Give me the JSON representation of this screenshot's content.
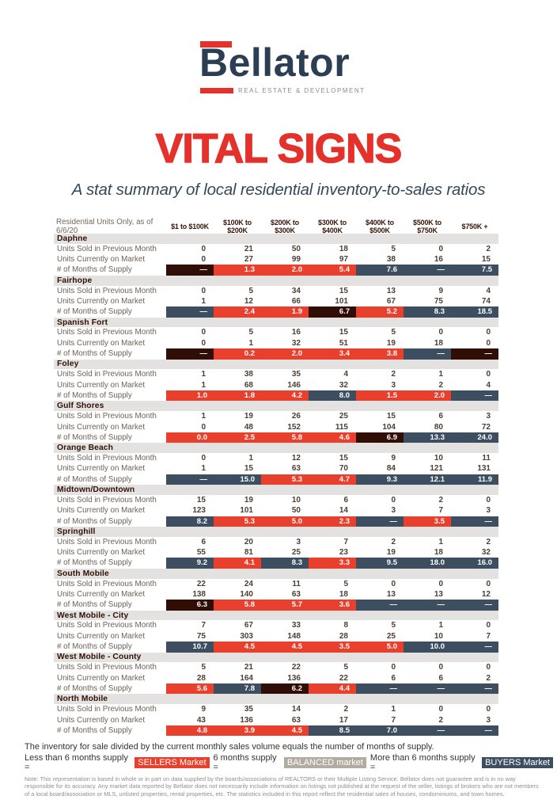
{
  "brand": {
    "name": "Bellator",
    "tagline": "REAL ESTATE & DEVELOPMENT"
  },
  "title": "VITAL SIGNS",
  "subtitle": "A stat summary of local residential inventory-to-sales ratios",
  "colors": {
    "brand_red": "#E5312B",
    "logo_navy": "#2C3E53",
    "subtitle_navy": "#34495C",
    "sellers": "#E8402D",
    "buyers": "#3D4E61",
    "na": "#300D05",
    "balanced": "#B2ABA2"
  },
  "table": {
    "meta_label": "Residential Units Only, as of 6/6/20",
    "columns": [
      "$1 to $100K",
      "$100K to $200K",
      "$200K to $300K",
      "$300K to $400K",
      "$400K to $500K",
      "$500K to $750K",
      "$750K +"
    ],
    "row_labels": {
      "sold": "Units Sold in Previous Month",
      "market": "Units Currently on Market",
      "supply": "# of Months of Supply"
    },
    "sections": [
      {
        "name": "Daphne",
        "sold": [
          "0",
          "21",
          "50",
          "18",
          "5",
          "0",
          "2"
        ],
        "market": [
          "0",
          "27",
          "99",
          "97",
          "38",
          "16",
          "15"
        ],
        "supply": [
          {
            "value": "—",
            "market": "na"
          },
          {
            "value": "1.3",
            "market": "sellers"
          },
          {
            "value": "2.0",
            "market": "sellers"
          },
          {
            "value": "5.4",
            "market": "sellers"
          },
          {
            "value": "7.6",
            "market": "buyers"
          },
          {
            "value": "—",
            "market": "buyers"
          },
          {
            "value": "7.5",
            "market": "buyers"
          }
        ]
      },
      {
        "name": "Fairhope",
        "sold": [
          "0",
          "5",
          "34",
          "15",
          "13",
          "9",
          "4"
        ],
        "market": [
          "1",
          "12",
          "66",
          "101",
          "67",
          "75",
          "74"
        ],
        "supply": [
          {
            "value": "—",
            "market": "buyers"
          },
          {
            "value": "2.4",
            "market": "sellers"
          },
          {
            "value": "1.9",
            "market": "sellers"
          },
          {
            "value": "6.7",
            "market": "na"
          },
          {
            "value": "5.2",
            "market": "sellers"
          },
          {
            "value": "8.3",
            "market": "buyers"
          },
          {
            "value": "18.5",
            "market": "buyers"
          }
        ]
      },
      {
        "name": "Spanish Fort",
        "sold": [
          "0",
          "5",
          "16",
          "15",
          "5",
          "0",
          "0"
        ],
        "market": [
          "0",
          "1",
          "32",
          "51",
          "19",
          "18",
          "0"
        ],
        "supply": [
          {
            "value": "—",
            "market": "na"
          },
          {
            "value": "0.2",
            "market": "sellers"
          },
          {
            "value": "2.0",
            "market": "sellers"
          },
          {
            "value": "3.4",
            "market": "sellers"
          },
          {
            "value": "3.8",
            "market": "sellers"
          },
          {
            "value": "—",
            "market": "buyers"
          },
          {
            "value": "—",
            "market": "na"
          }
        ]
      },
      {
        "name": "Foley",
        "sold": [
          "1",
          "38",
          "35",
          "4",
          "2",
          "1",
          "0"
        ],
        "market": [
          "1",
          "68",
          "146",
          "32",
          "3",
          "2",
          "4"
        ],
        "supply": [
          {
            "value": "1.0",
            "market": "sellers"
          },
          {
            "value": "1.8",
            "market": "sellers"
          },
          {
            "value": "4.2",
            "market": "sellers"
          },
          {
            "value": "8.0",
            "market": "buyers"
          },
          {
            "value": "1.5",
            "market": "sellers"
          },
          {
            "value": "2.0",
            "market": "sellers"
          },
          {
            "value": "—",
            "market": "buyers"
          }
        ]
      },
      {
        "name": "Gulf Shores",
        "sold": [
          "1",
          "19",
          "26",
          "25",
          "15",
          "6",
          "3"
        ],
        "market": [
          "0",
          "48",
          "152",
          "115",
          "104",
          "80",
          "72"
        ],
        "supply": [
          {
            "value": "0.0",
            "market": "sellers"
          },
          {
            "value": "2.5",
            "market": "sellers"
          },
          {
            "value": "5.8",
            "market": "sellers"
          },
          {
            "value": "4.6",
            "market": "sellers"
          },
          {
            "value": "6.9",
            "market": "na"
          },
          {
            "value": "13.3",
            "market": "buyers"
          },
          {
            "value": "24.0",
            "market": "buyers"
          }
        ]
      },
      {
        "name": "Orange Beach",
        "sold": [
          "0",
          "1",
          "12",
          "15",
          "9",
          "10",
          "11"
        ],
        "market": [
          "1",
          "15",
          "63",
          "70",
          "84",
          "121",
          "131"
        ],
        "supply": [
          {
            "value": "—",
            "market": "buyers"
          },
          {
            "value": "15.0",
            "market": "buyers"
          },
          {
            "value": "5.3",
            "market": "sellers"
          },
          {
            "value": "4.7",
            "market": "sellers"
          },
          {
            "value": "9.3",
            "market": "buyers"
          },
          {
            "value": "12.1",
            "market": "buyers"
          },
          {
            "value": "11.9",
            "market": "buyers"
          }
        ]
      },
      {
        "name": "Midtown/Downtown",
        "sold": [
          "15",
          "19",
          "10",
          "6",
          "0",
          "2",
          "0"
        ],
        "market": [
          "123",
          "101",
          "50",
          "14",
          "3",
          "7",
          "3"
        ],
        "supply": [
          {
            "value": "8.2",
            "market": "buyers"
          },
          {
            "value": "5.3",
            "market": "sellers"
          },
          {
            "value": "5.0",
            "market": "sellers"
          },
          {
            "value": "2.3",
            "market": "sellers"
          },
          {
            "value": "—",
            "market": "buyers"
          },
          {
            "value": "3.5",
            "market": "sellers"
          },
          {
            "value": "—",
            "market": "buyers"
          }
        ]
      },
      {
        "name": "Springhill",
        "sold": [
          "6",
          "20",
          "3",
          "7",
          "2",
          "1",
          "2"
        ],
        "market": [
          "55",
          "81",
          "25",
          "23",
          "19",
          "18",
          "32"
        ],
        "supply": [
          {
            "value": "9.2",
            "market": "buyers"
          },
          {
            "value": "4.1",
            "market": "sellers"
          },
          {
            "value": "8.3",
            "market": "buyers"
          },
          {
            "value": "3.3",
            "market": "sellers"
          },
          {
            "value": "9.5",
            "market": "buyers"
          },
          {
            "value": "18.0",
            "market": "buyers"
          },
          {
            "value": "16.0",
            "market": "buyers"
          }
        ]
      },
      {
        "name": "South Mobile",
        "sold": [
          "22",
          "24",
          "11",
          "5",
          "0",
          "0",
          "0"
        ],
        "market": [
          "138",
          "140",
          "63",
          "18",
          "13",
          "13",
          "12"
        ],
        "supply": [
          {
            "value": "6.3",
            "market": "na"
          },
          {
            "value": "5.8",
            "market": "sellers"
          },
          {
            "value": "5.7",
            "market": "sellers"
          },
          {
            "value": "3.6",
            "market": "sellers"
          },
          {
            "value": "—",
            "market": "buyers"
          },
          {
            "value": "—",
            "market": "buyers"
          },
          {
            "value": "—",
            "market": "buyers"
          }
        ]
      },
      {
        "name": "West Mobile - City",
        "sold": [
          "7",
          "67",
          "33",
          "8",
          "5",
          "1",
          "0"
        ],
        "market": [
          "75",
          "303",
          "148",
          "28",
          "25",
          "10",
          "7"
        ],
        "supply": [
          {
            "value": "10.7",
            "market": "buyers"
          },
          {
            "value": "4.5",
            "market": "sellers"
          },
          {
            "value": "4.5",
            "market": "sellers"
          },
          {
            "value": "3.5",
            "market": "sellers"
          },
          {
            "value": "5.0",
            "market": "sellers"
          },
          {
            "value": "10.0",
            "market": "buyers"
          },
          {
            "value": "—",
            "market": "buyers"
          }
        ]
      },
      {
        "name": "West Mobile - County",
        "sold": [
          "5",
          "21",
          "22",
          "5",
          "0",
          "0",
          "0"
        ],
        "market": [
          "28",
          "164",
          "136",
          "22",
          "6",
          "6",
          "2"
        ],
        "supply": [
          {
            "value": "5.6",
            "market": "sellers"
          },
          {
            "value": "7.8",
            "market": "buyers"
          },
          {
            "value": "6.2",
            "market": "na"
          },
          {
            "value": "4.4",
            "market": "sellers"
          },
          {
            "value": "—",
            "market": "buyers"
          },
          {
            "value": "—",
            "market": "buyers"
          },
          {
            "value": "—",
            "market": "buyers"
          }
        ]
      },
      {
        "name": "North Mobile",
        "sold": [
          "9",
          "35",
          "14",
          "2",
          "1",
          "0",
          "0"
        ],
        "market": [
          "43",
          "136",
          "63",
          "17",
          "7",
          "2",
          "3"
        ],
        "supply": [
          {
            "value": "4.8",
            "market": "sellers"
          },
          {
            "value": "3.9",
            "market": "sellers"
          },
          {
            "value": "4.5",
            "market": "sellers"
          },
          {
            "value": "8.5",
            "market": "buyers"
          },
          {
            "value": "7.0",
            "market": "buyers"
          },
          {
            "value": "—",
            "market": "buyers"
          },
          {
            "value": "—",
            "market": "buyers"
          }
        ]
      }
    ]
  },
  "footer": {
    "explainer": "The inventory for sale divided by the current monthly sales volume equals the number of months of supply.",
    "legend": [
      {
        "label": "Less than 6 months supply =",
        "chip": "SELLERS Market",
        "type": "sellers"
      },
      {
        "label": "6 months supply =",
        "chip": "BALANCED market",
        "type": "balanced"
      },
      {
        "label": "More than 6 months supply =",
        "chip": "BUYERS Market",
        "type": "buyers"
      }
    ],
    "note": "Note: This representation is based in whole or in part on data supplied by the boards/associations of REALTORS or their Multiple Listing Service. Bellator does not guarantee and is in no way responsible for its accuracy. Any market data reported by Bellator does not necessarily include information on listings not published at the request of the seller, listings of brokers who are not members of a local board/association or MLS, unlisted properties, rental properties, etc. The statistics included in this report reflect the residential sales of houses, condominiums, and town homes."
  }
}
